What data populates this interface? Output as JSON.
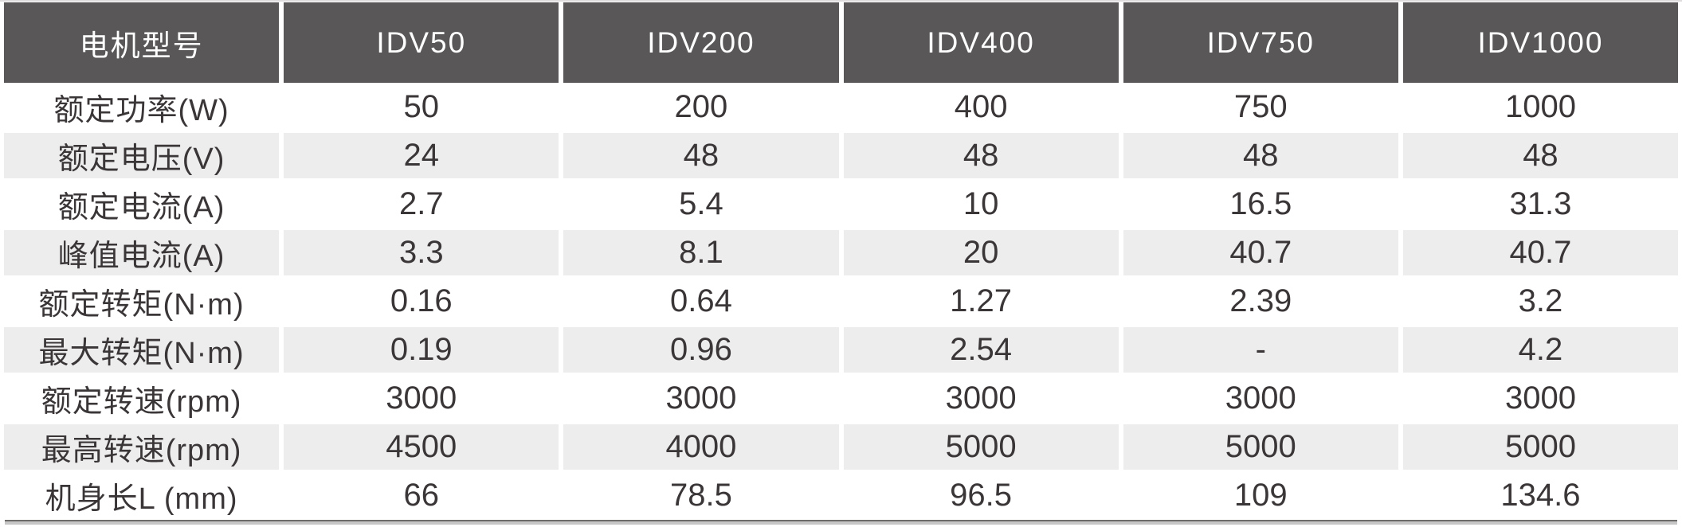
{
  "table": {
    "header": {
      "label": "电机型号",
      "models": [
        "IDV50",
        "IDV200",
        "IDV400",
        "IDV750",
        "IDV1000"
      ]
    },
    "rows": [
      {
        "label": "额定功率(W)",
        "values": [
          "50",
          "200",
          "400",
          "750",
          "1000"
        ]
      },
      {
        "label": "额定电压(V)",
        "values": [
          "24",
          "48",
          "48",
          "48",
          "48"
        ]
      },
      {
        "label": "额定电流(A)",
        "values": [
          "2.7",
          "5.4",
          "10",
          "16.5",
          "31.3"
        ]
      },
      {
        "label": "峰值电流(A)",
        "values": [
          "3.3",
          "8.1",
          "20",
          "40.7",
          "40.7"
        ]
      },
      {
        "label": "额定转矩(N·m)",
        "values": [
          "0.16",
          "0.64",
          "1.27",
          "2.39",
          "3.2"
        ]
      },
      {
        "label": "最大转矩(N·m)",
        "values": [
          "0.19",
          "0.96",
          "2.54",
          "-",
          "4.2"
        ]
      },
      {
        "label": "额定转速(rpm)",
        "values": [
          "3000",
          "3000",
          "3000",
          "3000",
          "3000"
        ]
      },
      {
        "label": "最高转速(rpm)",
        "values": [
          "4500",
          "4000",
          "5000",
          "5000",
          "5000"
        ]
      },
      {
        "label": "机身长L (mm)",
        "values": [
          "66",
          "78.5",
          "96.5",
          "109",
          "134.6"
        ]
      }
    ]
  },
  "colors": {
    "header_bg": "#595757",
    "header_text": "#ffffff",
    "stripe_bg": "#ededed",
    "body_text": "#3a3637",
    "rule_dark": "#6e6b6b",
    "rule_light": "#c6c6c6"
  }
}
